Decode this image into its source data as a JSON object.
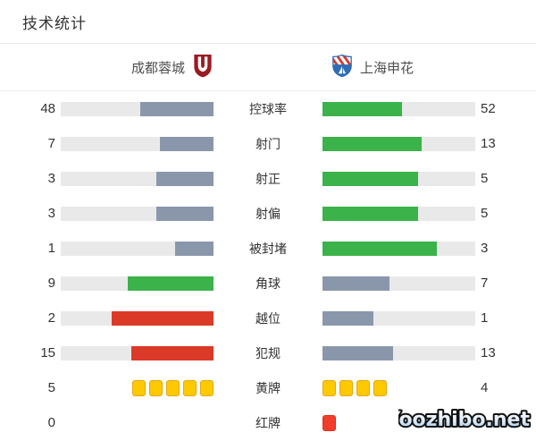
{
  "page": {
    "title": "技术统计"
  },
  "header": {
    "home_team": {
      "name": "成都蓉城",
      "logo": "chengdu-rongcheng-crest"
    },
    "away_team": {
      "name": "上海申花",
      "logo": "shanghai-shenhua-crest"
    }
  },
  "watermark": {
    "text": "Yoozhibo.net"
  },
  "colors": {
    "green": "#3cb24a",
    "gray": "#8a97ab",
    "red": "#dc3a28",
    "track": "#e9e9e9",
    "yellow_card": "#fdca02",
    "red_card": "#f23d2b",
    "home_crest_red": "#9b1b23",
    "away_crest_blue": "#2e6cb5"
  },
  "stats": [
    {
      "label": "控球率",
      "home": {
        "value": "48",
        "pct": 48,
        "style": "gray"
      },
      "away": {
        "value": "52",
        "pct": 52,
        "style": "green"
      }
    },
    {
      "label": "射门",
      "home": {
        "value": "7",
        "pct": 35,
        "style": "gray"
      },
      "away": {
        "value": "13",
        "pct": 65,
        "style": "green"
      }
    },
    {
      "label": "射正",
      "home": {
        "value": "3",
        "pct": 37.5,
        "style": "gray"
      },
      "away": {
        "value": "5",
        "pct": 62.5,
        "style": "green"
      }
    },
    {
      "label": "射偏",
      "home": {
        "value": "3",
        "pct": 37.5,
        "style": "gray"
      },
      "away": {
        "value": "5",
        "pct": 62.5,
        "style": "green"
      }
    },
    {
      "label": "被封堵",
      "home": {
        "value": "1",
        "pct": 25,
        "style": "gray"
      },
      "away": {
        "value": "3",
        "pct": 75,
        "style": "green"
      }
    },
    {
      "label": "角球",
      "home": {
        "value": "9",
        "pct": 56.3,
        "style": "green"
      },
      "away": {
        "value": "7",
        "pct": 43.7,
        "style": "gray"
      }
    },
    {
      "label": "越位",
      "home": {
        "value": "2",
        "pct": 66.7,
        "style": "red"
      },
      "away": {
        "value": "1",
        "pct": 33.3,
        "style": "gray"
      }
    },
    {
      "label": "犯规",
      "home": {
        "value": "15",
        "pct": 53.6,
        "style": "red"
      },
      "away": {
        "value": "13",
        "pct": 46.4,
        "style": "gray"
      }
    },
    {
      "label": "黄牌",
      "type": "cards",
      "home": {
        "value": "5",
        "cards": 5,
        "card": "yellow"
      },
      "away": {
        "value": "4",
        "cards": 4,
        "card": "yellow"
      }
    },
    {
      "label": "红牌",
      "type": "cards",
      "home": {
        "value": "0",
        "cards": 0,
        "card": "red"
      },
      "away": {
        "value": "",
        "cards": 1,
        "card": "red"
      }
    }
  ],
  "chart_data": {
    "type": "bar",
    "title": "技术统计",
    "orientation": "horizontal-mirrored",
    "categories": [
      "控球率",
      "射门",
      "射正",
      "射偏",
      "被封堵",
      "角球",
      "越位",
      "犯规",
      "黄牌",
      "红牌"
    ],
    "series": [
      {
        "name": "成都蓉城",
        "values": [
          48,
          7,
          3,
          3,
          1,
          9,
          2,
          15,
          5,
          0
        ]
      },
      {
        "name": "上海申花",
        "values": [
          52,
          13,
          5,
          5,
          3,
          7,
          1,
          13,
          4,
          1
        ]
      }
    ],
    "notes": "Bars are proportional to each stat's share of the two-team total; leading value shown green (red for negative stats 越位/犯规), trailing value gray; card stats drawn as card icons"
  }
}
